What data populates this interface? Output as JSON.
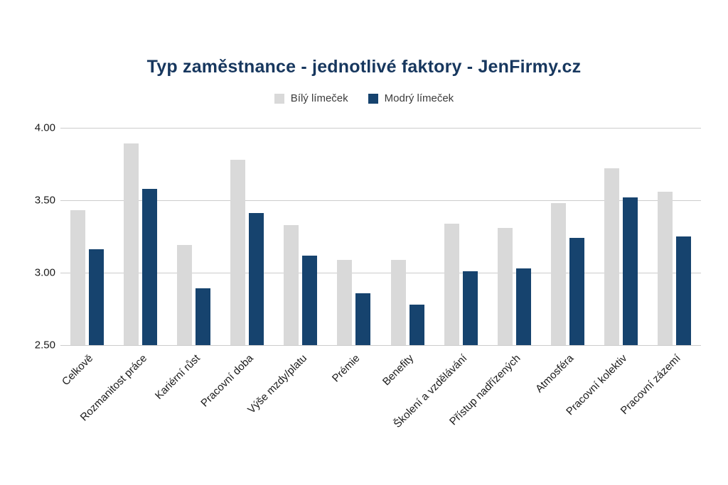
{
  "title": "Typ zaměstnance - jednotlivé faktory - JenFirmy.cz",
  "colors": {
    "title_text": "#17375e",
    "white_collar_bar": "#d9d9d9",
    "blue_collar_bar": "#16436e",
    "gridline": "#cccccc",
    "axis_text": "#1a1a1a"
  },
  "chart_data": {
    "type": "bar",
    "title": "Typ zaměstnance - jednotlivé faktory - JenFirmy.cz",
    "categories": [
      "Celkově",
      "Rozmanitost práce",
      "Kariérní růst",
      "Pracovní doba",
      "Výše mzdy/platu",
      "Prémie",
      "Benefity",
      "Školení a vzdělávání",
      "Přístup nadřízených",
      "Atmosféra",
      "Pracovní kolektiv",
      "Pracovní zázemí"
    ],
    "series": [
      {
        "name": "Bílý límeček",
        "color": "#d9d9d9",
        "values": [
          3.43,
          3.89,
          3.19,
          3.78,
          3.33,
          3.09,
          3.09,
          3.34,
          3.31,
          3.48,
          3.72,
          3.56
        ]
      },
      {
        "name": "Modrý límeček",
        "color": "#16436e",
        "values": [
          3.16,
          3.58,
          2.89,
          3.41,
          3.12,
          2.86,
          2.78,
          3.01,
          3.03,
          3.24,
          3.52,
          3.25
        ]
      }
    ],
    "xlabel": "",
    "ylabel": "",
    "ylim": [
      2.5,
      4.0
    ],
    "y_ticks": [
      "4.00",
      "3.50",
      "3.00",
      "2.50"
    ],
    "y_tick_values": [
      4.0,
      3.5,
      3.0,
      2.5
    ],
    "grid": true,
    "legend_position": "top"
  }
}
